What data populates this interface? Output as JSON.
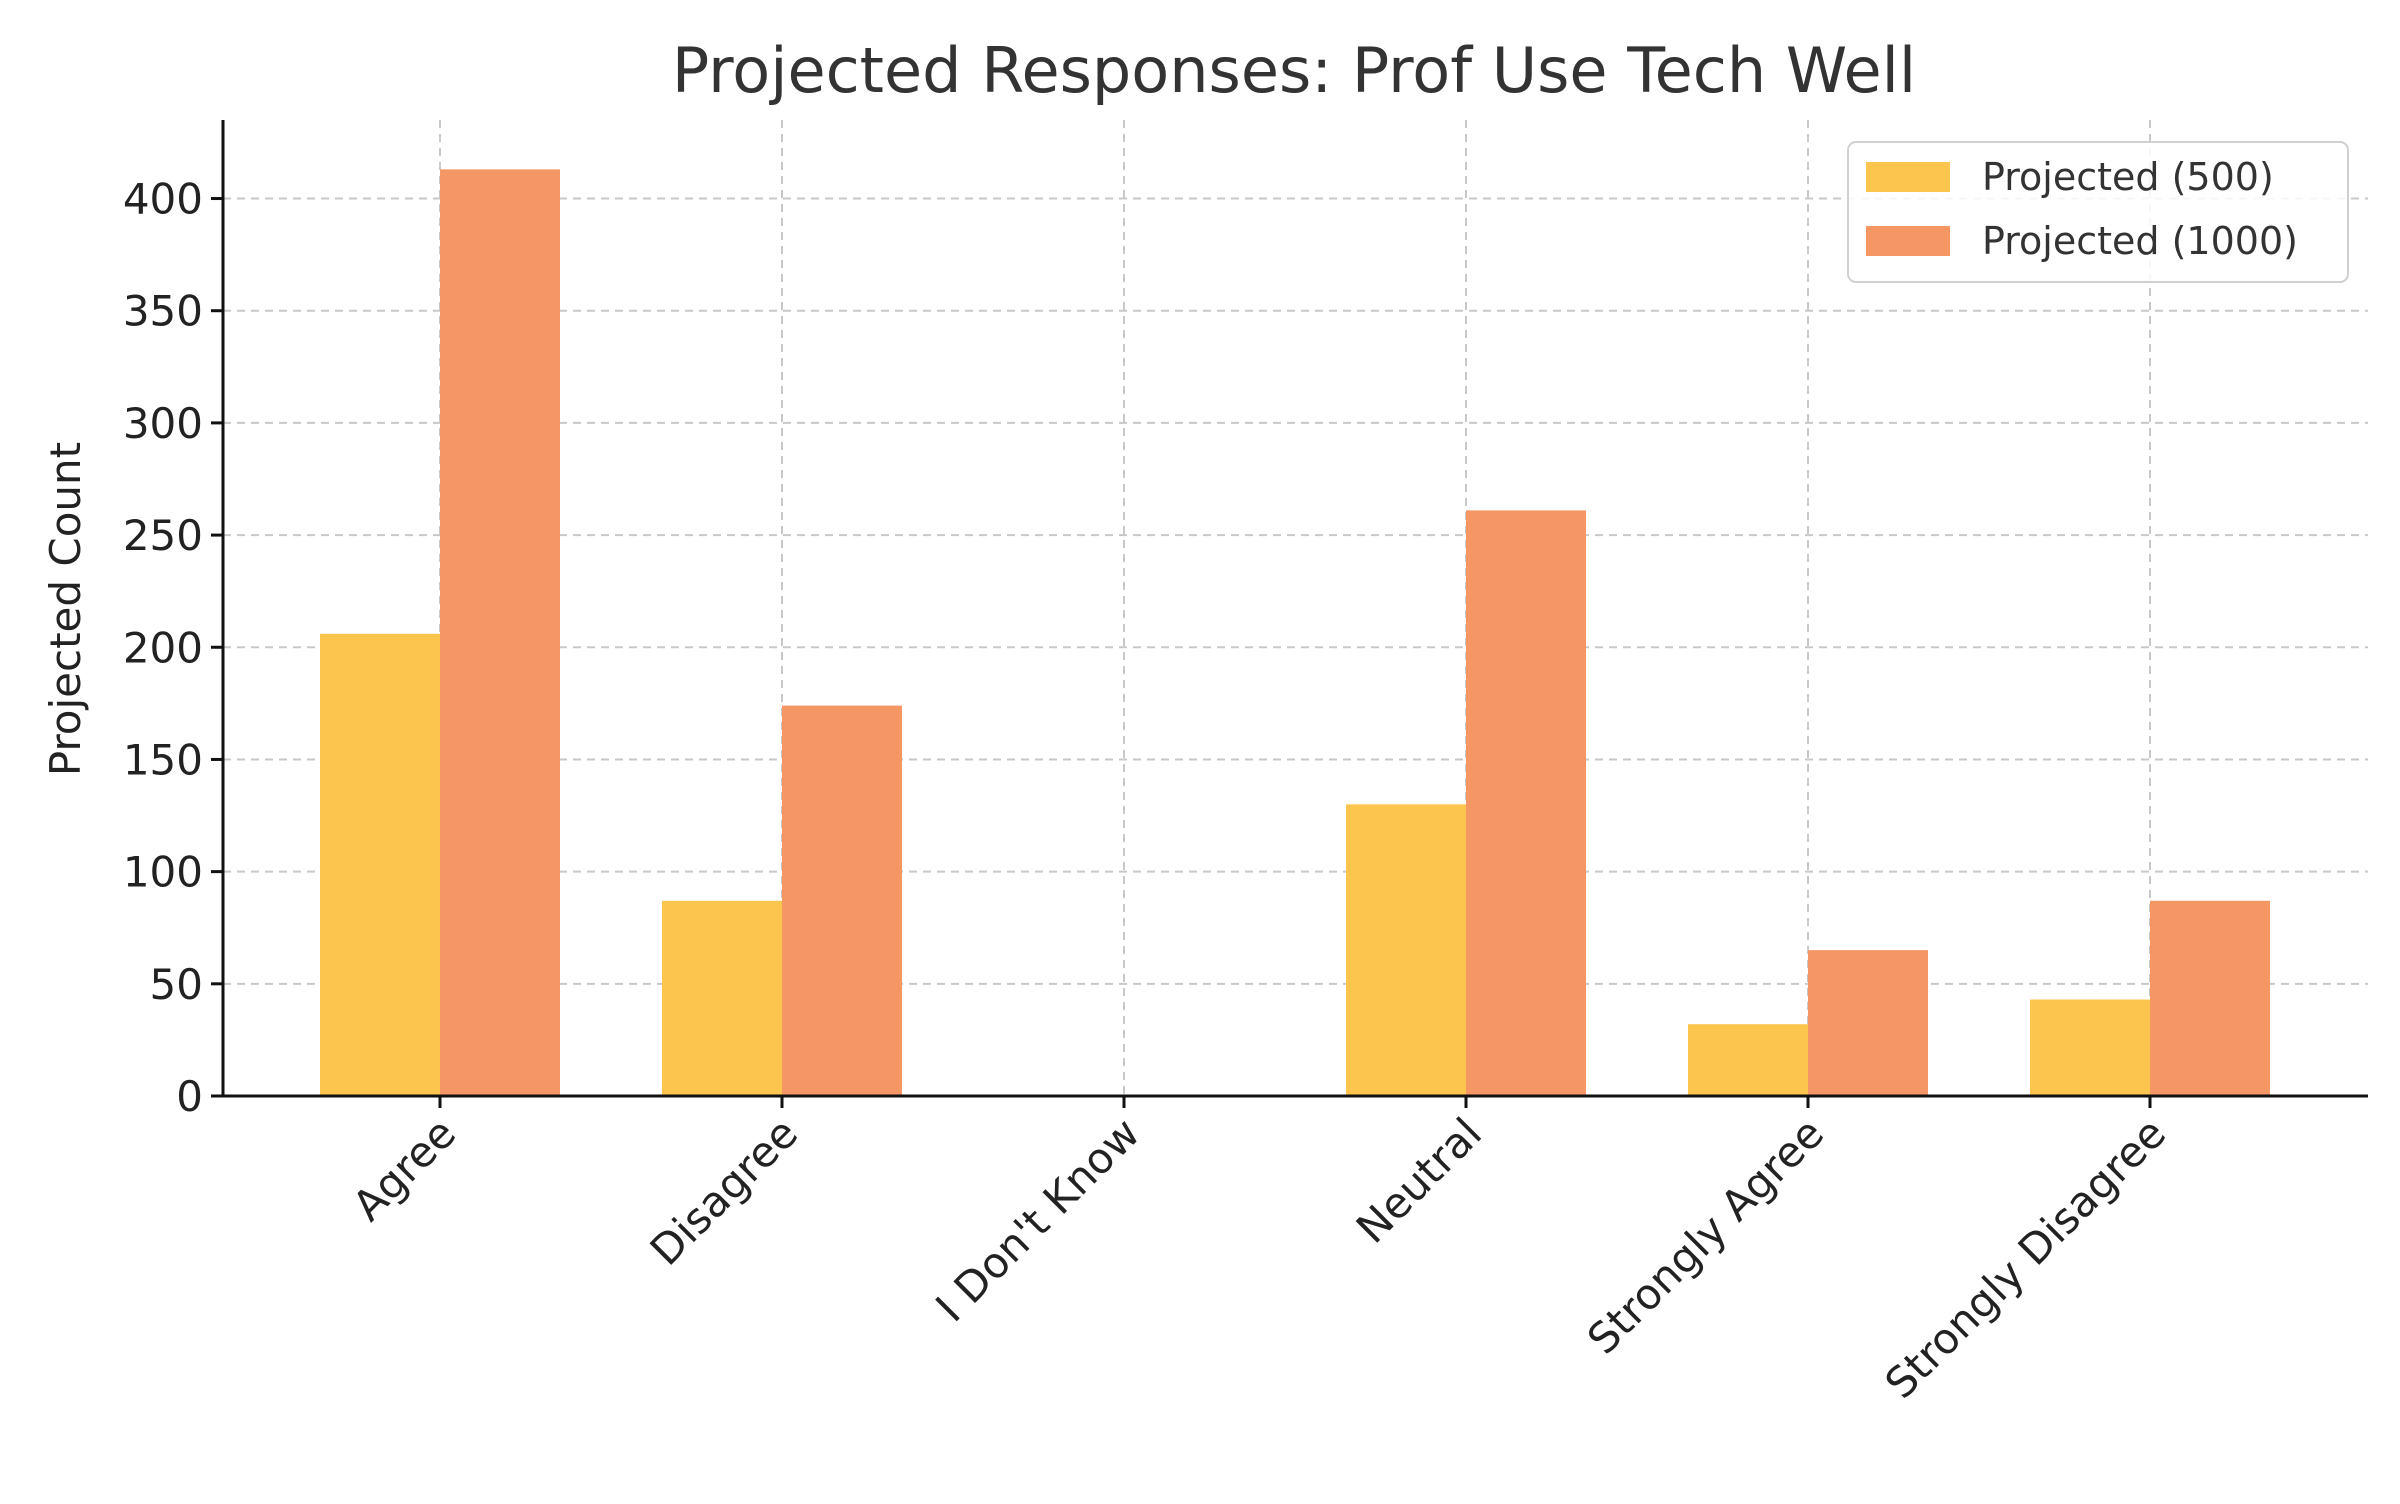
{
  "chart_data": {
    "type": "bar",
    "title": "Projected Responses: Prof Use Tech Well",
    "xlabel": "",
    "ylabel": "Projected Count",
    "categories": [
      "Agree",
      "Disagree",
      "I Don't Know",
      "Neutral",
      "Strongly Agree",
      "Strongly Disagree"
    ],
    "series": [
      {
        "name": "Projected (500)",
        "color": "#FCC54E",
        "values": [
          206,
          87,
          0,
          130,
          32,
          43
        ]
      },
      {
        "name": "Projected (1000)",
        "color": "#F59665",
        "values": [
          413,
          174,
          0,
          261,
          65,
          87
        ]
      }
    ],
    "ylim": [
      0,
      435
    ],
    "yticks": [
      0,
      50,
      100,
      150,
      200,
      250,
      300,
      350,
      400
    ],
    "grid": true,
    "legend": "top-right"
  }
}
